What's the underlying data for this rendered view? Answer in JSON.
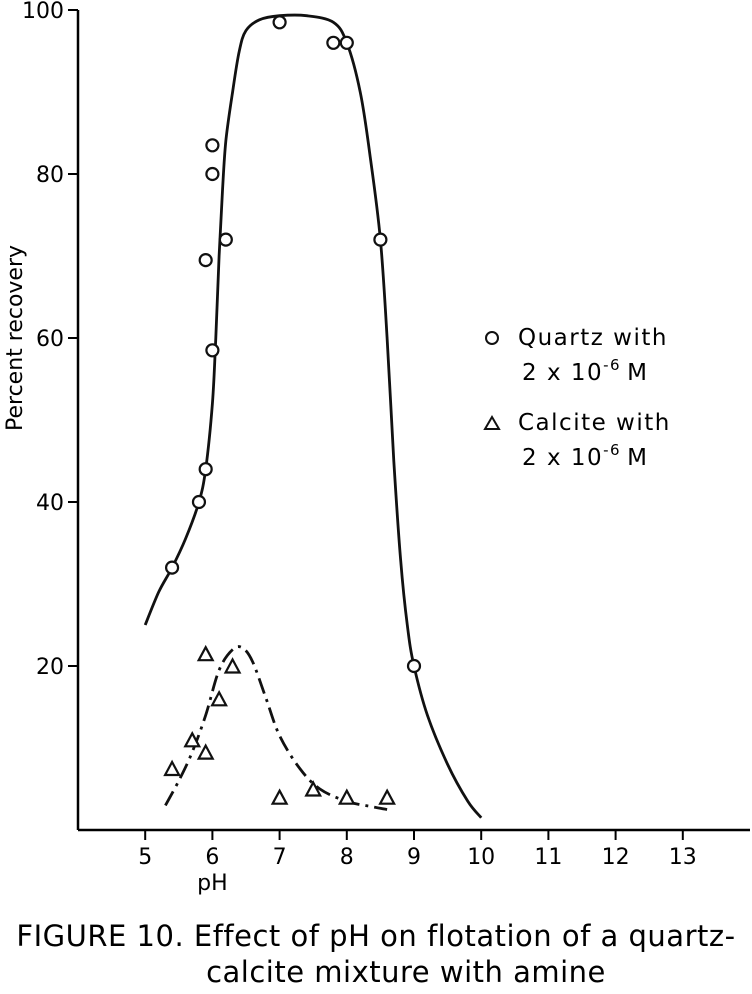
{
  "chart_data": {
    "type": "scatter",
    "xlabel": "pH",
    "ylabel": "Percent recovery",
    "xlim": [
      4,
      14
    ],
    "ylim": [
      0,
      100
    ],
    "x_ticks": [
      "5",
      "6",
      "7",
      "8",
      "9",
      "10",
      "11",
      "12",
      "13"
    ],
    "y_ticks": [
      "20",
      "40",
      "60",
      "80",
      "100"
    ],
    "grid": false,
    "legend_position": "right",
    "series": [
      {
        "name": "Quartz with 2 x 10-6 M",
        "legend_line1": "Quartz with",
        "legend_line2_base": "2 x 10",
        "legend_line2_exp": "-6",
        "legend_line2_unit": "M",
        "marker": "circle",
        "curve_style": "solid",
        "points": [
          [
            5.4,
            32
          ],
          [
            5.8,
            40
          ],
          [
            5.9,
            44
          ],
          [
            6.0,
            58.5
          ],
          [
            5.9,
            69.5
          ],
          [
            6.2,
            72
          ],
          [
            6.0,
            80
          ],
          [
            6.0,
            83.5
          ],
          [
            7.0,
            98.5
          ],
          [
            7.8,
            96
          ],
          [
            8.0,
            96
          ],
          [
            8.5,
            72
          ],
          [
            9.0,
            20
          ]
        ],
        "curve": [
          [
            5.0,
            25
          ],
          [
            5.2,
            29
          ],
          [
            5.4,
            32
          ],
          [
            5.6,
            35.5
          ],
          [
            5.8,
            40
          ],
          [
            5.9,
            44
          ],
          [
            6.0,
            52
          ],
          [
            6.05,
            60
          ],
          [
            6.1,
            70
          ],
          [
            6.15,
            78
          ],
          [
            6.2,
            84
          ],
          [
            6.3,
            90
          ],
          [
            6.4,
            95
          ],
          [
            6.5,
            97.5
          ],
          [
            6.7,
            98.8
          ],
          [
            7.0,
            99.3
          ],
          [
            7.4,
            99.3
          ],
          [
            7.8,
            98.5
          ],
          [
            8.0,
            96
          ],
          [
            8.2,
            90
          ],
          [
            8.35,
            82
          ],
          [
            8.5,
            72
          ],
          [
            8.6,
            60
          ],
          [
            8.7,
            45
          ],
          [
            8.8,
            33
          ],
          [
            8.9,
            25
          ],
          [
            9.0,
            20
          ],
          [
            9.2,
            14
          ],
          [
            9.5,
            8
          ],
          [
            9.8,
            3.5
          ],
          [
            10.0,
            1.5
          ]
        ]
      },
      {
        "name": "Calcite with 2 x 10-6 M",
        "legend_line1": "Calcite with",
        "legend_line2_base": "2 x 10",
        "legend_line2_exp": "-6",
        "legend_line2_unit": "M",
        "marker": "triangle",
        "curve_style": "dash-dot",
        "points": [
          [
            5.4,
            7.5
          ],
          [
            5.7,
            11
          ],
          [
            5.9,
            9.5
          ],
          [
            5.9,
            21.5
          ],
          [
            6.1,
            16
          ],
          [
            6.3,
            20
          ],
          [
            7.0,
            4
          ],
          [
            7.5,
            5
          ],
          [
            8.0,
            4
          ],
          [
            8.6,
            4
          ]
        ],
        "curve": [
          [
            5.3,
            3
          ],
          [
            5.5,
            6
          ],
          [
            5.7,
            9.5
          ],
          [
            5.9,
            14
          ],
          [
            6.1,
            19.5
          ],
          [
            6.3,
            22
          ],
          [
            6.45,
            22.2
          ],
          [
            6.6,
            20.5
          ],
          [
            6.8,
            16
          ],
          [
            7.0,
            11.5
          ],
          [
            7.3,
            7.5
          ],
          [
            7.6,
            5
          ],
          [
            8.0,
            3.5
          ],
          [
            8.4,
            2.8
          ],
          [
            8.6,
            2.5
          ]
        ]
      }
    ]
  },
  "caption": {
    "line1": "FIGURE 10.  Effect of pH on flotation of a quartz-",
    "line2": "calcite mixture with amine"
  }
}
